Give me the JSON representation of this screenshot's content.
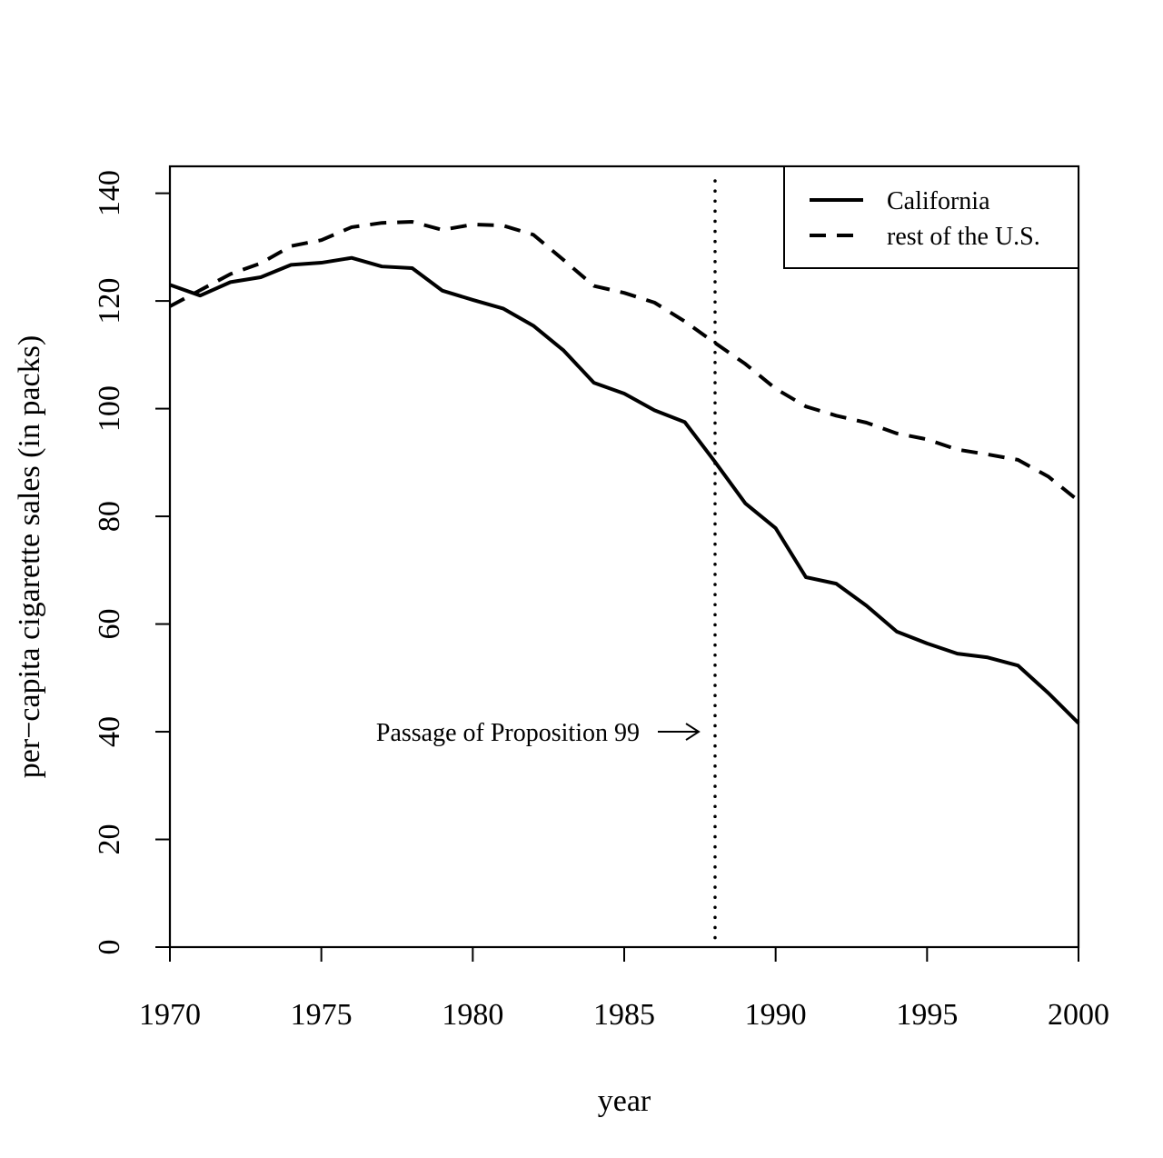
{
  "chart_data": {
    "type": "line",
    "title": "",
    "xlabel": "year",
    "ylabel": "per−capita cigarette sales (in packs)",
    "xlim": [
      1970,
      2000
    ],
    "ylim": [
      0,
      145
    ],
    "xticks": [
      1970,
      1975,
      1980,
      1985,
      1990,
      1995,
      2000
    ],
    "yticks": [
      0,
      20,
      40,
      60,
      80,
      100,
      120,
      140
    ],
    "xtick_labels": [
      "1970",
      "1975",
      "1980",
      "1985",
      "1990",
      "1995",
      "2000"
    ],
    "ytick_labels": [
      "0",
      "20",
      "40",
      "60",
      "80",
      "100",
      "120",
      "140"
    ],
    "grid": false,
    "legend_position": "top-right",
    "x": [
      1970,
      1971,
      1972,
      1973,
      1974,
      1975,
      1976,
      1977,
      1978,
      1979,
      1980,
      1981,
      1982,
      1983,
      1984,
      1985,
      1986,
      1987,
      1988,
      1989,
      1990,
      1991,
      1992,
      1993,
      1994,
      1995,
      1996,
      1997,
      1998,
      1999,
      2000
    ],
    "series": [
      {
        "name": "California",
        "line_style": "solid",
        "color": "#000000",
        "values": [
          123.0,
          121.0,
          123.5,
          124.4,
          126.7,
          127.1,
          128.0,
          126.4,
          126.1,
          121.9,
          120.2,
          118.6,
          115.4,
          110.8,
          104.8,
          102.8,
          99.7,
          97.5,
          90.1,
          82.4,
          77.8,
          68.7,
          67.5,
          63.4,
          58.6,
          56.4,
          54.5,
          53.8,
          52.3,
          47.2,
          41.6
        ]
      },
      {
        "name": "rest of the U.S.",
        "line_style": "dashed",
        "color": "#000000",
        "values": [
          119.0,
          122.0,
          125.0,
          127.0,
          130.2,
          131.3,
          133.7,
          134.5,
          134.7,
          133.2,
          134.2,
          134.0,
          132.3,
          127.6,
          122.8,
          121.5,
          119.7,
          116.2,
          112.2,
          108.3,
          103.7,
          100.4,
          98.7,
          97.4,
          95.4,
          94.3,
          92.4,
          91.5,
          90.5,
          87.4,
          82.9
        ]
      }
    ],
    "annotations": [
      {
        "type": "vertical_line",
        "x": 1988,
        "line_style": "dotted"
      },
      {
        "type": "text_arrow",
        "text": "Passage of Proposition 99",
        "x": 1988,
        "y": 40
      }
    ]
  }
}
